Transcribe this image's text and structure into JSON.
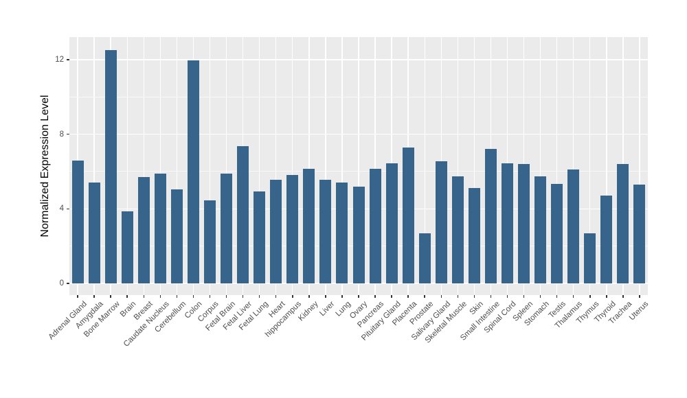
{
  "chart_data": {
    "type": "bar",
    "title": "",
    "xlabel": "",
    "ylabel": "Normalized Expression Level",
    "categories": [
      "Adrenal Gland",
      "Amygdala",
      "Bone Marrow",
      "Brain",
      "Breast",
      "Caudate Nucleus",
      "Cerebellum",
      "Colon",
      "Corpus",
      "Fetal Brain",
      "Fetal Liver",
      "Fetal Lung",
      "Heart",
      "hippocampus",
      "Kidney",
      "Liver",
      "Lung",
      "Ovary",
      "Pancreas",
      "Pituitary Gland",
      "Placenta",
      "Prostate",
      "Salivary Gland",
      "Skeletal Muscle",
      "Skin",
      "Small Intestine",
      "Spinal Cord",
      "Spleen",
      "Stomach",
      "Testis",
      "Thalamus",
      "Thymus",
      "Thyroid",
      "Trachea",
      "Uterus"
    ],
    "values": [
      6.6,
      5.4,
      12.5,
      3.85,
      5.7,
      5.9,
      5.05,
      11.95,
      4.45,
      5.9,
      7.35,
      4.95,
      5.55,
      5.8,
      6.15,
      5.55,
      5.4,
      5.2,
      6.15,
      6.45,
      7.3,
      2.7,
      6.55,
      5.75,
      5.1,
      7.2,
      6.45,
      6.4,
      5.75,
      5.35,
      6.1,
      2.7,
      4.7,
      6.4,
      5.3
    ],
    "yticks": [
      0,
      4,
      8,
      12
    ],
    "ytick_labels": [
      "0",
      "4",
      "8",
      "12"
    ],
    "yticks_minor": [
      2,
      6,
      10
    ],
    "ylim": [
      -0.65,
      13.2
    ],
    "x_tick_angle_degrees": 45,
    "grid": true,
    "legend_position": "none",
    "bar_color": "#36648B",
    "panel_background": "#EBEBEB",
    "gridline_color": "#FFFFFF",
    "tick_color": "#333333",
    "tick_label_color": "#4D4D4D",
    "axis_title_color": "#000000"
  }
}
